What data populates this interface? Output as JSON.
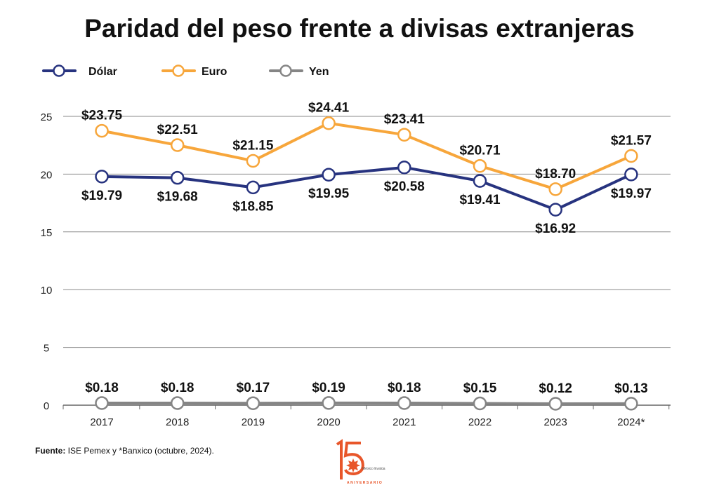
{
  "chart_data": {
    "type": "line",
    "title": "Paridad del peso frente a divisas extranjeras",
    "categories": [
      "2017",
      "2018",
      "2019",
      "2020",
      "2021",
      "2022",
      "2023",
      "2024*"
    ],
    "ylim": [
      0,
      25
    ],
    "yticks": [
      0,
      5,
      10,
      15,
      20,
      25
    ],
    "grid": true,
    "legend_position": "top-left",
    "series": [
      {
        "name": "Dólar",
        "color": "#27337f",
        "values": [
          19.79,
          19.68,
          18.85,
          19.95,
          20.58,
          19.41,
          16.92,
          19.97
        ],
        "labels": [
          "$19.79",
          "$19.68",
          "$18.85",
          "$19.95",
          "$20.58",
          "$19.41",
          "$16.92",
          "$19.97"
        ],
        "label_pos": "below"
      },
      {
        "name": "Euro",
        "color": "#f7a63b",
        "values": [
          23.75,
          22.51,
          21.15,
          24.41,
          23.41,
          20.71,
          18.7,
          21.57
        ],
        "labels": [
          "$23.75",
          "$22.51",
          "$21.15",
          "$24.41",
          "$23.41",
          "$20.71",
          "$18.70",
          "$21.57"
        ],
        "label_pos": "above"
      },
      {
        "name": "Yen",
        "color": "#858585",
        "values": [
          0.18,
          0.18,
          0.17,
          0.19,
          0.18,
          0.15,
          0.12,
          0.13
        ],
        "labels": [
          "$0.18",
          "$0.18",
          "$0.17",
          "$0.19",
          "$0.18",
          "$0.15",
          "$0.12",
          "$0.13"
        ],
        "label_pos": "above"
      }
    ]
  },
  "source": {
    "label": "Fuente:",
    "text": " ISE Pemex y *Banxico (octubre, 2024)."
  },
  "logo": {
    "number": "15",
    "brand": "México Evalúa",
    "caption": "ANIVERSARIO",
    "color": "#e8562a"
  }
}
